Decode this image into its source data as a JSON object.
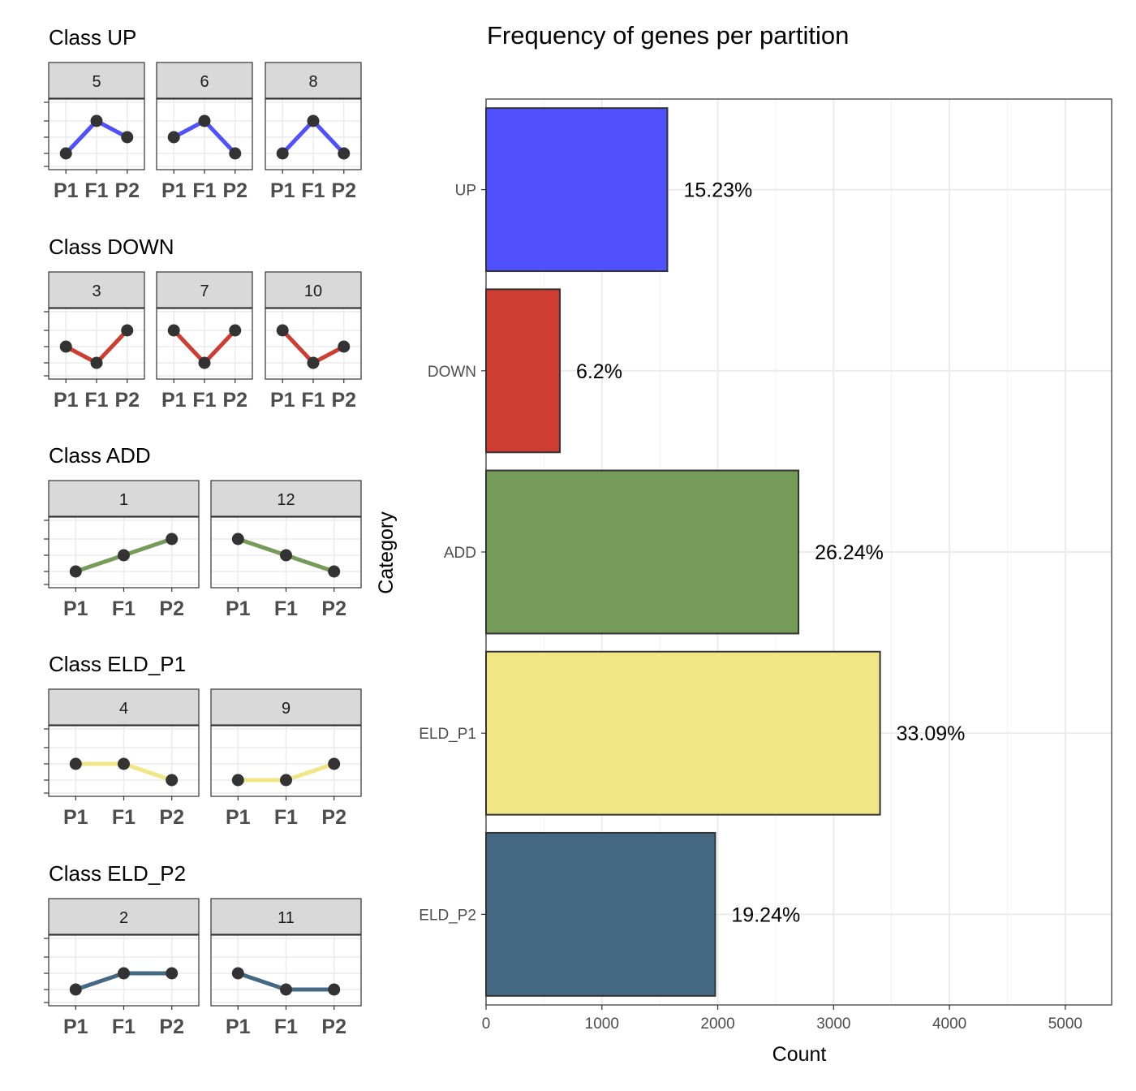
{
  "left_panels": [
    {
      "title": "Class UP",
      "color": "#5050FF",
      "facets": [
        {
          "label": "5",
          "levels": [
            1,
            3,
            2
          ]
        },
        {
          "label": "6",
          "levels": [
            2,
            3,
            1
          ]
        },
        {
          "label": "8",
          "levels": [
            1,
            3,
            1
          ]
        }
      ]
    },
    {
      "title": "Class DOWN",
      "color": "#CE3D32",
      "facets": [
        {
          "label": "3",
          "levels": [
            2,
            1,
            3
          ]
        },
        {
          "label": "7",
          "levels": [
            3,
            1,
            3
          ]
        },
        {
          "label": "10",
          "levels": [
            3,
            1,
            2
          ]
        }
      ]
    },
    {
      "title": "Class ADD",
      "color": "#749B58",
      "facets": [
        {
          "label": "1",
          "levels": [
            1,
            2,
            3
          ]
        },
        {
          "label": "12",
          "levels": [
            3,
            2,
            1
          ]
        }
      ]
    },
    {
      "title": "Class ELD_P1",
      "color": "#F0E685",
      "facets": [
        {
          "label": "4",
          "levels": [
            2,
            2,
            1
          ]
        },
        {
          "label": "9",
          "levels": [
            1,
            1,
            2
          ]
        }
      ]
    },
    {
      "title": "Class ELD_P2",
      "color": "#466983",
      "facets": [
        {
          "label": "2",
          "levels": [
            1,
            2,
            2
          ]
        },
        {
          "label": "11",
          "levels": [
            2,
            1,
            1
          ]
        }
      ]
    }
  ],
  "mini_x_labels": [
    "P1",
    "F1",
    "P2"
  ],
  "chart_data": {
    "type": "bar",
    "orientation": "horizontal",
    "title": "Frequency of genes per partition",
    "xlabel": "Count",
    "ylabel": "Category",
    "categories": [
      "UP",
      "DOWN",
      "ADD",
      "ELD_P1",
      "ELD_P2"
    ],
    "values": [
      1565,
      637,
      2697,
      3401,
      1978
    ],
    "labels": [
      "15.23%",
      "6.2%",
      "26.24%",
      "33.09%",
      "19.24%"
    ],
    "colors": [
      "#5050FF",
      "#CE3D32",
      "#749B58",
      "#F0E685",
      "#466983"
    ],
    "xlim": [
      0,
      5400
    ],
    "xticks": [
      0,
      1000,
      2000,
      3000,
      4000,
      5000
    ],
    "grid": true
  }
}
